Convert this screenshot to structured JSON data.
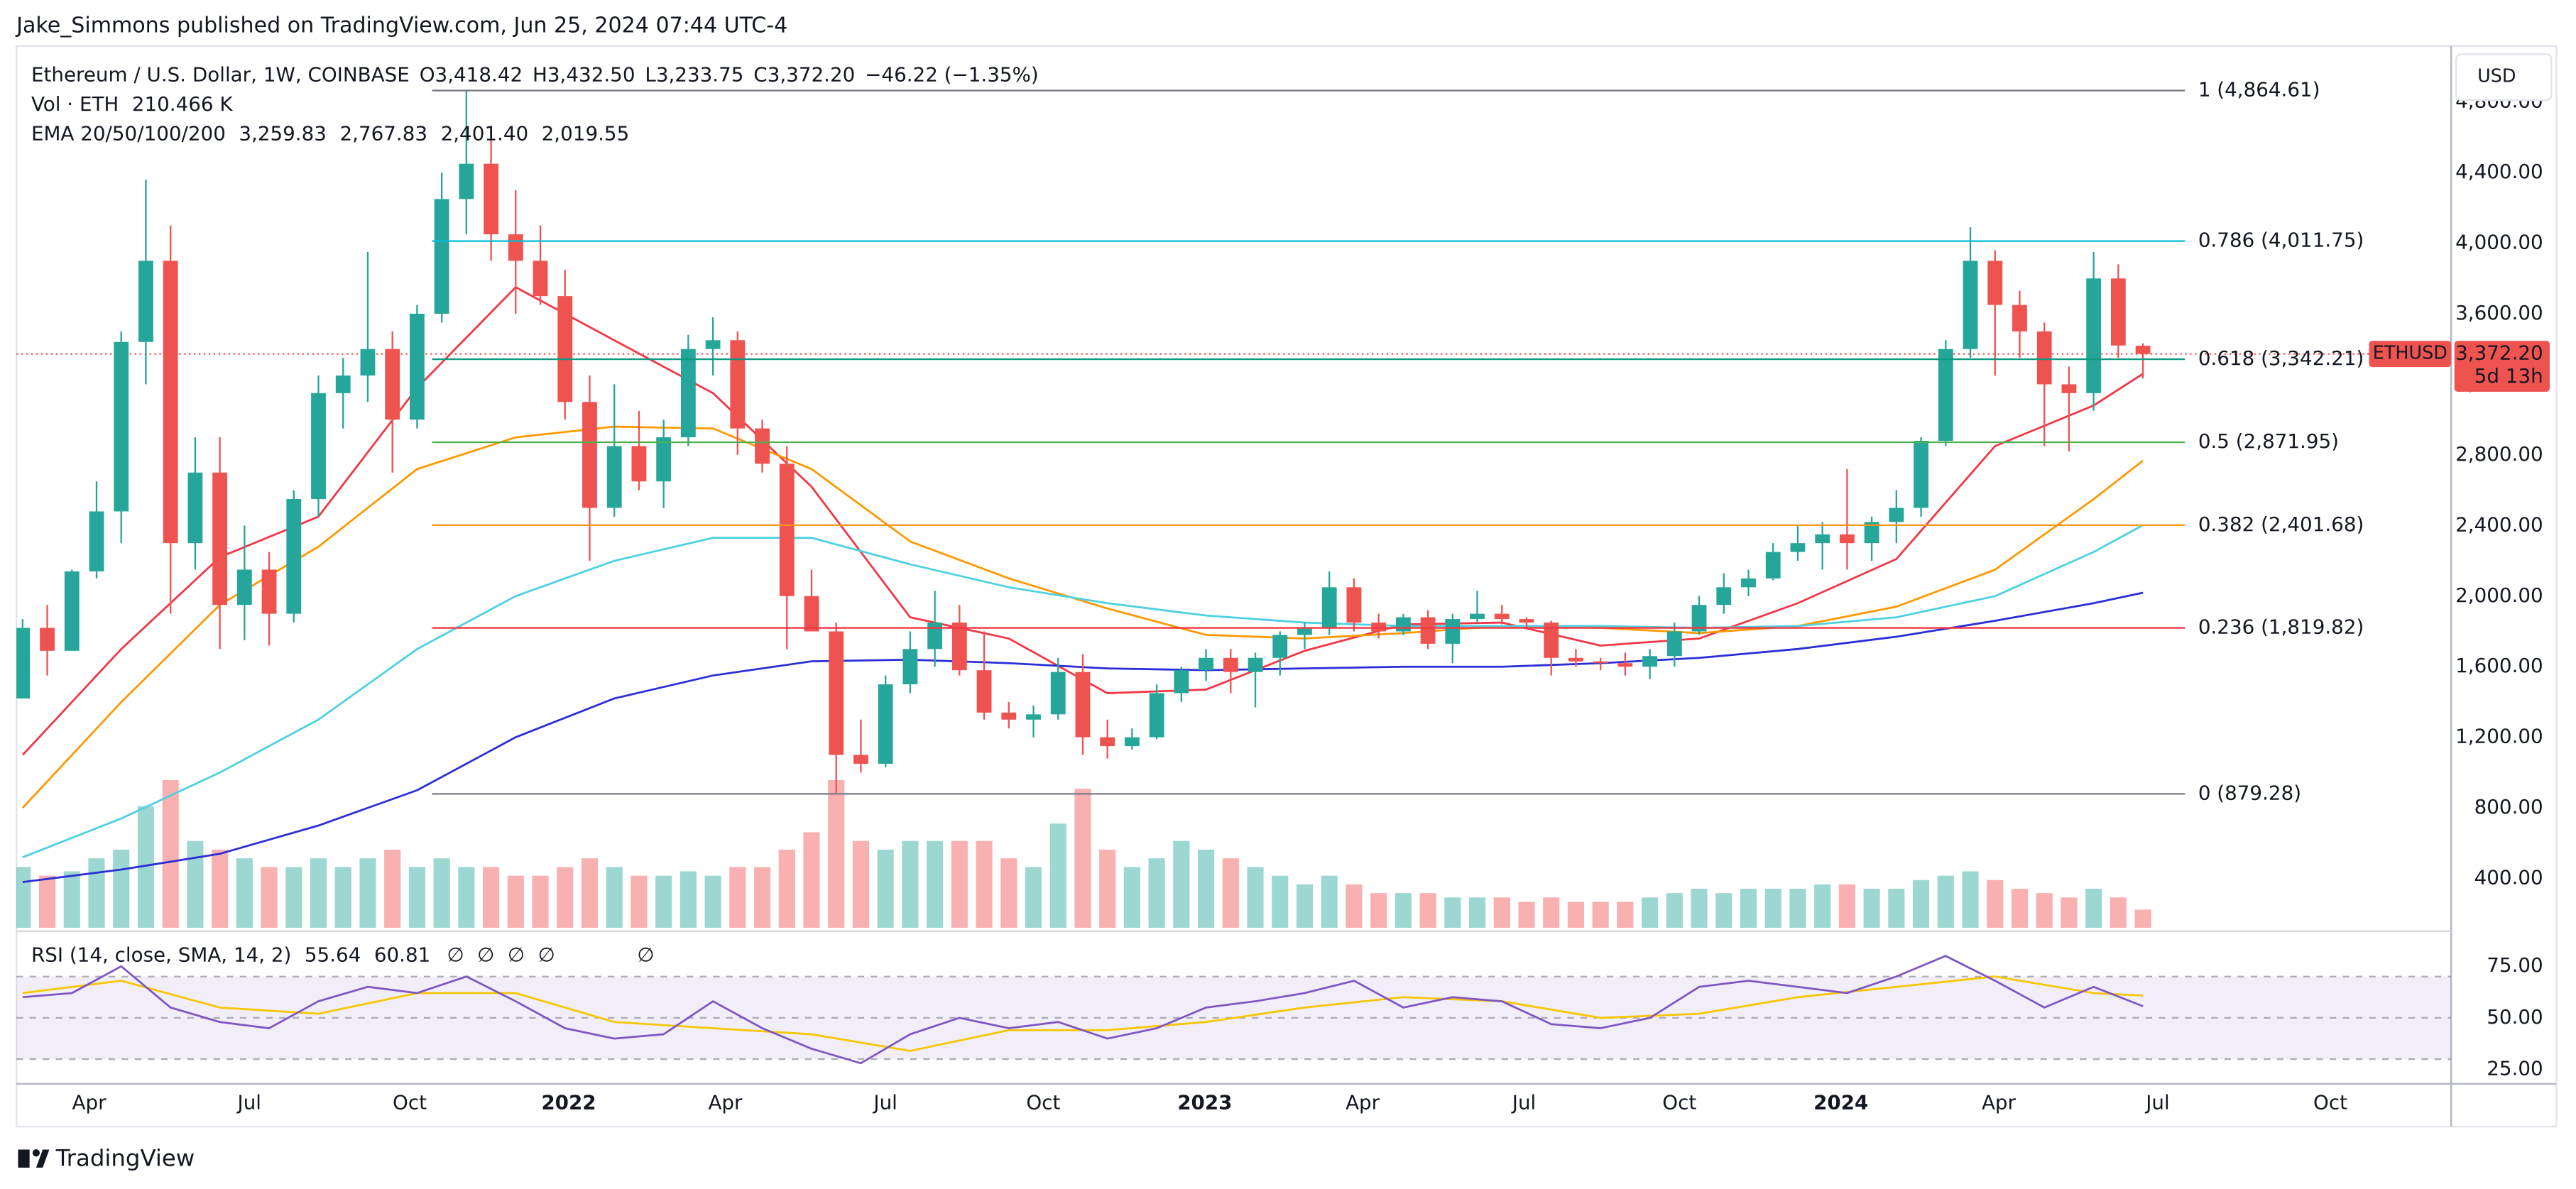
{
  "header": {
    "publisher": "Jake_Simmons published on TradingView.com, Jun 25, 2024 07:44 UTC-4"
  },
  "footer": {
    "brand": "TradingView"
  },
  "chart_data": {
    "type": "candlestick",
    "title": "Ethereum / U.S. Dollar, 1W, COINBASE",
    "ohlc_legend": [
      {
        "key": "O",
        "value": "3,418.42"
      },
      {
        "key": "H",
        "value": "3,432.50"
      },
      {
        "key": "L",
        "value": "3,233.75"
      },
      {
        "key": "C",
        "value": "3,372.20"
      }
    ],
    "change": "−46.22 (−1.35%)",
    "currency": "USD",
    "up_color": "#26a69a",
    "down_color": "#ef5350",
    "grid": false,
    "xlim": [
      -0.5,
      197
    ],
    "xticks": [
      {
        "value": 5.4,
        "label": "Apr"
      },
      {
        "value": 18.4,
        "label": "Jul"
      },
      {
        "value": 31.4,
        "label": "Oct"
      },
      {
        "value": 44.3,
        "label": "2022"
      },
      {
        "value": 57.0,
        "label": "Apr"
      },
      {
        "value": 70.0,
        "label": "Jul"
      },
      {
        "value": 82.8,
        "label": "Oct"
      },
      {
        "value": 95.9,
        "label": "2023"
      },
      {
        "value": 108.7,
        "label": "Apr"
      },
      {
        "value": 121.8,
        "label": "Jul"
      },
      {
        "value": 134.4,
        "label": "Oct"
      },
      {
        "value": 147.5,
        "label": "2024"
      },
      {
        "value": 160.3,
        "label": "Apr"
      },
      {
        "value": 173.2,
        "label": "Jul"
      },
      {
        "value": 187.2,
        "label": "Oct"
      }
    ],
    "ylim": [
      120,
      5080
    ],
    "yticks": [
      {
        "value": 400,
        "label": "400.00"
      },
      {
        "value": 800,
        "label": "800.00"
      },
      {
        "value": 1200,
        "label": "1,200.00"
      },
      {
        "value": 1600,
        "label": "1,600.00"
      },
      {
        "value": 2000,
        "label": "2,000.00"
      },
      {
        "value": 2400,
        "label": "2,400.00"
      },
      {
        "value": 2800,
        "label": "2,800.00"
      },
      {
        "value": 3200,
        "label": "3,200.00"
      },
      {
        "value": 3600,
        "label": "3,600.00"
      },
      {
        "value": 4000,
        "label": "4,000.00"
      },
      {
        "value": 4400,
        "label": "4,400.00"
      },
      {
        "value": 4800,
        "label": "4,800.00"
      }
    ],
    "x": [
      0,
      2,
      4,
      6,
      8,
      10,
      12,
      14,
      16,
      18,
      20,
      22,
      24,
      26,
      28,
      30,
      32,
      34,
      36,
      38,
      40,
      42,
      44,
      46,
      48,
      50,
      52,
      54,
      56,
      58,
      60,
      62,
      64,
      66,
      68,
      70,
      72,
      74,
      76,
      78,
      80,
      82,
      84,
      86,
      88,
      90,
      92,
      94,
      96,
      98,
      100,
      102,
      104,
      106,
      108,
      110,
      112,
      114,
      116,
      118,
      120,
      122,
      124,
      126,
      128,
      130,
      132,
      134,
      136,
      138,
      140,
      142,
      144,
      146,
      148,
      150,
      152,
      154,
      156,
      158,
      160,
      162,
      164,
      166,
      168,
      170,
      172
    ],
    "ohlc": [
      [
        1420,
        1870,
        1420,
        1820
      ],
      [
        1820,
        1950,
        1550,
        1690
      ],
      [
        1690,
        2150,
        1700,
        2140
      ],
      [
        2140,
        2650,
        2100,
        2480
      ],
      [
        2480,
        3500,
        2300,
        3440
      ],
      [
        3440,
        4360,
        3200,
        3900
      ],
      [
        3900,
        4100,
        1900,
        2300
      ],
      [
        2300,
        2900,
        2150,
        2700
      ],
      [
        2700,
        2900,
        1700,
        1950
      ],
      [
        1950,
        2400,
        1750,
        2150
      ],
      [
        2150,
        2250,
        1720,
        1900
      ],
      [
        1900,
        2600,
        1850,
        2550
      ],
      [
        2550,
        3250,
        2450,
        3150
      ],
      [
        3150,
        3350,
        2950,
        3250
      ],
      [
        3250,
        3950,
        3100,
        3400
      ],
      [
        3400,
        3500,
        2700,
        3000
      ],
      [
        3000,
        3650,
        2950,
        3600
      ],
      [
        3600,
        4400,
        3550,
        4250
      ],
      [
        4250,
        4870,
        4050,
        4450
      ],
      [
        4450,
        4600,
        3900,
        4050
      ],
      [
        4050,
        4300,
        3600,
        3900
      ],
      [
        3900,
        4100,
        3650,
        3700
      ],
      [
        3700,
        3850,
        3000,
        3100
      ],
      [
        3100,
        3250,
        2200,
        2500
      ],
      [
        2500,
        3200,
        2450,
        2850
      ],
      [
        2850,
        3050,
        2600,
        2650
      ],
      [
        2650,
        3000,
        2500,
        2900
      ],
      [
        2900,
        3480,
        2850,
        3400
      ],
      [
        3400,
        3580,
        3250,
        3450
      ],
      [
        3450,
        3500,
        2800,
        2950
      ],
      [
        2950,
        3000,
        2700,
        2750
      ],
      [
        2750,
        2850,
        1700,
        2000
      ],
      [
        2000,
        2150,
        1800,
        1800
      ],
      [
        1800,
        1850,
        880,
        1100
      ],
      [
        1100,
        1300,
        1000,
        1050
      ],
      [
        1050,
        1550,
        1030,
        1500
      ],
      [
        1500,
        1800,
        1450,
        1700
      ],
      [
        1700,
        2030,
        1600,
        1850
      ],
      [
        1850,
        1950,
        1550,
        1580
      ],
      [
        1580,
        1800,
        1300,
        1340
      ],
      [
        1340,
        1400,
        1250,
        1300
      ],
      [
        1300,
        1380,
        1200,
        1330
      ],
      [
        1330,
        1650,
        1300,
        1570
      ],
      [
        1570,
        1670,
        1100,
        1200
      ],
      [
        1200,
        1300,
        1080,
        1150
      ],
      [
        1150,
        1250,
        1130,
        1200
      ],
      [
        1200,
        1500,
        1190,
        1450
      ],
      [
        1450,
        1600,
        1400,
        1580
      ],
      [
        1580,
        1700,
        1520,
        1650
      ],
      [
        1650,
        1700,
        1450,
        1570
      ],
      [
        1570,
        1680,
        1370,
        1650
      ],
      [
        1650,
        1800,
        1550,
        1780
      ],
      [
        1780,
        1850,
        1700,
        1820
      ],
      [
        1820,
        2140,
        1780,
        2050
      ],
      [
        2050,
        2100,
        1800,
        1850
      ],
      [
        1850,
        1900,
        1760,
        1800
      ],
      [
        1800,
        1900,
        1780,
        1880
      ],
      [
        1880,
        1920,
        1700,
        1730
      ],
      [
        1730,
        1900,
        1620,
        1870
      ],
      [
        1870,
        2030,
        1850,
        1900
      ],
      [
        1900,
        1950,
        1840,
        1870
      ],
      [
        1870,
        1880,
        1820,
        1850
      ],
      [
        1850,
        1860,
        1550,
        1650
      ],
      [
        1650,
        1700,
        1600,
        1630
      ],
      [
        1630,
        1650,
        1580,
        1620
      ],
      [
        1620,
        1680,
        1550,
        1600
      ],
      [
        1600,
        1700,
        1530,
        1660
      ],
      [
        1660,
        1850,
        1600,
        1800
      ],
      [
        1800,
        2000,
        1780,
        1950
      ],
      [
        1950,
        2130,
        1900,
        2050
      ],
      [
        2050,
        2150,
        2000,
        2100
      ],
      [
        2100,
        2300,
        2090,
        2250
      ],
      [
        2250,
        2400,
        2200,
        2300
      ],
      [
        2300,
        2420,
        2150,
        2350
      ],
      [
        2350,
        2720,
        2150,
        2300
      ],
      [
        2300,
        2450,
        2200,
        2420
      ],
      [
        2420,
        2600,
        2300,
        2500
      ],
      [
        2500,
        2900,
        2450,
        2880
      ],
      [
        2880,
        3450,
        2850,
        3400
      ],
      [
        3400,
        4090,
        3350,
        3900
      ],
      [
        3900,
        3960,
        3250,
        3650
      ],
      [
        3650,
        3730,
        3350,
        3500
      ],
      [
        3500,
        3550,
        2850,
        3200
      ],
      [
        3200,
        3300,
        2820,
        3150
      ],
      [
        3150,
        3950,
        3050,
        3800
      ],
      [
        3800,
        3880,
        3350,
        3420
      ],
      [
        3418.42,
        3432.5,
        3233.75,
        3372.2
      ]
    ],
    "volume": {
      "name": "Vol · ETH",
      "value_label": "210.466 K",
      "values": [
        700,
        600,
        650,
        800,
        900,
        1400,
        1700,
        1000,
        900,
        800,
        700,
        700,
        800,
        700,
        800,
        900,
        700,
        800,
        700,
        700,
        600,
        600,
        700,
        800,
        700,
        600,
        600,
        650,
        600,
        700,
        700,
        900,
        1100,
        1700,
        1000,
        900,
        1000,
        1000,
        1000,
        1000,
        800,
        700,
        1200,
        1600,
        900,
        700,
        800,
        1000,
        900,
        800,
        700,
        600,
        500,
        600,
        500,
        400,
        400,
        400,
        350,
        350,
        350,
        300,
        350,
        300,
        300,
        300,
        350,
        400,
        450,
        400,
        450,
        450,
        450,
        500,
        500,
        450,
        450,
        550,
        600,
        650,
        550,
        450,
        400,
        350,
        450,
        350,
        210.466
      ]
    },
    "ema": {
      "label": "EMA 20/50/100/200",
      "x": [
        0,
        8,
        16,
        24,
        32,
        40,
        48,
        56,
        64,
        72,
        80,
        88,
        96,
        104,
        112,
        120,
        128,
        136,
        144,
        152,
        160,
        168,
        172
      ],
      "series": [
        {
          "color": "#f23645",
          "value_label": "3,259.83",
          "values": [
            1100,
            1700,
            2220,
            2450,
            3180,
            3750,
            3450,
            3150,
            2620,
            1880,
            1760,
            1450,
            1470,
            1690,
            1840,
            1850,
            1720,
            1760,
            1960,
            2210,
            2850,
            3080,
            3259.83
          ]
        },
        {
          "color": "#ff9800",
          "value_label": "2,767.83",
          "values": [
            800,
            1400,
            1950,
            2280,
            2720,
            2900,
            2960,
            2950,
            2720,
            2310,
            2100,
            1930,
            1780,
            1760,
            1790,
            1830,
            1820,
            1790,
            1830,
            1940,
            2150,
            2550,
            2767.83
          ]
        },
        {
          "color": "#4dd0e1",
          "value_label": "2,401.40",
          "values": [
            520,
            740,
            1000,
            1300,
            1700,
            2000,
            2200,
            2330,
            2330,
            2180,
            2050,
            1960,
            1890,
            1850,
            1830,
            1830,
            1830,
            1820,
            1830,
            1880,
            2000,
            2250,
            2401.4
          ]
        },
        {
          "color": "#2a2ed6",
          "value_label": "2,019.55",
          "values": [
            380,
            450,
            540,
            700,
            900,
            1200,
            1420,
            1550,
            1630,
            1640,
            1620,
            1590,
            1580,
            1590,
            1600,
            1600,
            1620,
            1650,
            1700,
            1770,
            1860,
            1960,
            2019.55
          ]
        }
      ]
    },
    "fib": [
      {
        "label": "1 (4,864.61)",
        "value": 4864.61,
        "color": "#787b86"
      },
      {
        "label": "0.786 (4,011.75)",
        "value": 4011.75,
        "color": "#00bcd4"
      },
      {
        "label": "0.618 (3,342.21)",
        "value": 3342.21,
        "color": "#089981"
      },
      {
        "label": "0.5 (2,871.95)",
        "value": 2871.95,
        "color": "#4caf50"
      },
      {
        "label": "0.382 (2,401.68)",
        "value": 2401.68,
        "color": "#ff9800"
      },
      {
        "label": "0.236 (1,819.82)",
        "value": 1819.82,
        "color": "#f23645"
      },
      {
        "label": "0 (879.28)",
        "value": 879.28,
        "color": "#787b86"
      }
    ],
    "last_price": {
      "symbol": "ETHUSD",
      "value": 3372.2,
      "label": "3,372.20",
      "countdown": "5d 13h"
    },
    "rsi": {
      "label": "RSI (14, close, SMA, 14, 2)",
      "value_label": "55.64",
      "sma_label": "60.81",
      "markers": [
        "∅",
        "∅",
        "∅",
        "∅",
        "∅"
      ],
      "color": "#7e57c2",
      "sma_color": "#f7c600",
      "ylim": [
        18,
        92
      ],
      "yticks": [
        {
          "value": 25,
          "label": "25.00"
        },
        {
          "value": 50,
          "label": "50.00"
        },
        {
          "value": 75,
          "label": "75.00"
        }
      ],
      "band": [
        30,
        70
      ],
      "midline": 50,
      "x": [
        0,
        4,
        8,
        12,
        16,
        20,
        24,
        28,
        32,
        36,
        40,
        44,
        48,
        52,
        56,
        60,
        64,
        68,
        72,
        76,
        80,
        84,
        88,
        92,
        96,
        100,
        104,
        108,
        112,
        116,
        120,
        124,
        128,
        132,
        136,
        140,
        144,
        148,
        152,
        156,
        160,
        164,
        168,
        172
      ],
      "values": [
        60,
        62,
        75,
        55,
        48,
        45,
        58,
        65,
        62,
        70,
        58,
        45,
        40,
        42,
        58,
        45,
        35,
        28,
        42,
        50,
        45,
        48,
        40,
        45,
        55,
        58,
        62,
        68,
        55,
        60,
        58,
        47,
        45,
        50,
        65,
        68,
        65,
        62,
        70,
        80,
        68,
        55,
        65,
        55.64
      ],
      "sma_x": [
        0,
        8,
        16,
        24,
        32,
        40,
        48,
        56,
        64,
        72,
        80,
        88,
        96,
        104,
        112,
        120,
        128,
        136,
        144,
        152,
        160,
        168,
        172
      ],
      "sma": [
        62,
        68,
        55,
        52,
        62,
        62,
        48,
        45,
        42,
        34,
        44,
        44,
        48,
        55,
        60,
        58,
        50,
        52,
        60,
        65,
        70,
        62,
        60.81
      ]
    }
  }
}
